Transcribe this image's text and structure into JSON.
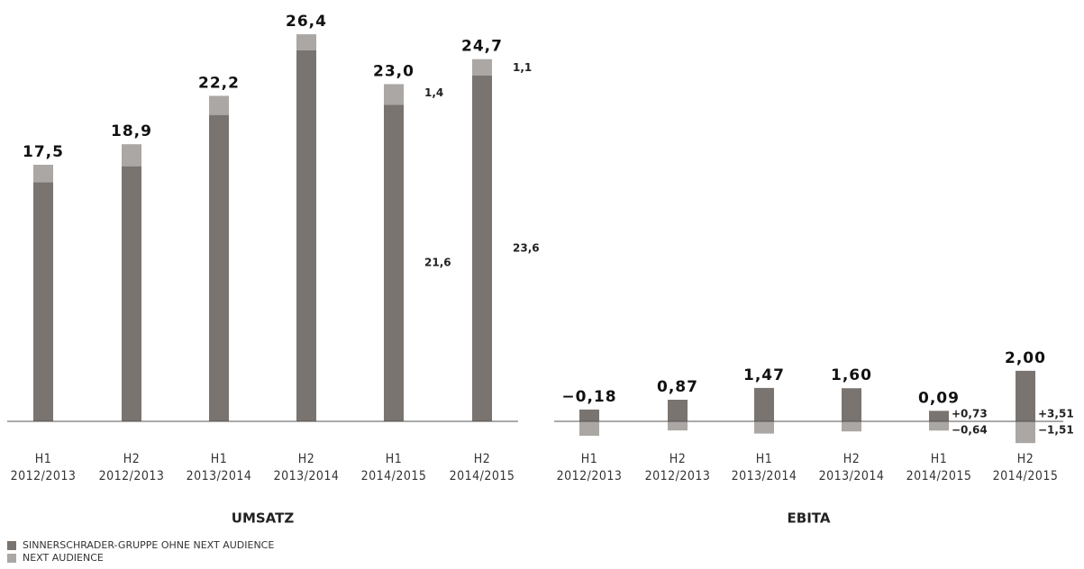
{
  "chart_data": [
    {
      "type": "bar",
      "stacked": true,
      "title": "UMSATZ",
      "categories": [
        [
          "H1",
          "2012/2013"
        ],
        [
          "H2",
          "2012/2013"
        ],
        [
          "H1",
          "2013/2014"
        ],
        [
          "H2",
          "2013/2014"
        ],
        [
          "H1",
          "2014/2015"
        ],
        [
          "H2",
          "2014/2015"
        ]
      ],
      "series": [
        {
          "name": "SINNERSCHRADER-GRUPPE OHNE NEXT AUDIENCE",
          "color": "#7a7470",
          "values": [
            16.3,
            17.4,
            20.9,
            25.3,
            21.6,
            23.6
          ],
          "value_labels": [
            null,
            null,
            null,
            null,
            "21,6",
            "23,6"
          ]
        },
        {
          "name": "NEXT AUDIENCE",
          "color": "#aaa7a4",
          "values": [
            1.2,
            1.5,
            1.3,
            1.1,
            1.4,
            1.1
          ],
          "value_labels": [
            null,
            null,
            null,
            null,
            "1,4",
            "1,1"
          ]
        }
      ],
      "totals": [
        17.5,
        18.9,
        22.2,
        26.4,
        23.0,
        24.7
      ],
      "total_labels": [
        "17,5",
        "18,9",
        "22,2",
        "26,4",
        "23,0",
        "24,7"
      ],
      "ylim": [
        0,
        28
      ]
    },
    {
      "type": "bar",
      "stacked": true,
      "title": "EBITA",
      "categories": [
        [
          "H1",
          "2012/2013"
        ],
        [
          "H2",
          "2012/2013"
        ],
        [
          "H1",
          "2013/2014"
        ],
        [
          "H2",
          "2013/2014"
        ],
        [
          "H1",
          "2014/2015"
        ],
        [
          "H2",
          "2014/2015"
        ]
      ],
      "series": [
        {
          "color": "#7a7470",
          "values": [
            0.82,
            1.5,
            2.32,
            2.3,
            0.73,
            3.51
          ],
          "value_labels": [
            null,
            null,
            null,
            null,
            "+0,73",
            "+3,51"
          ]
        },
        {
          "color": "#aaa7a4",
          "values": [
            -1.0,
            -0.63,
            -0.85,
            -0.7,
            -0.64,
            -1.51
          ],
          "value_labels": [
            null,
            null,
            null,
            null,
            "−0,64",
            "−1,51"
          ]
        }
      ],
      "totals": [
        -0.18,
        0.87,
        1.47,
        1.6,
        0.09,
        2.0
      ],
      "total_labels": [
        "−0,18",
        "0,87",
        "1,47",
        "1,60",
        "0,09",
        "2,00"
      ],
      "ylim": [
        -2,
        4
      ]
    }
  ]
}
